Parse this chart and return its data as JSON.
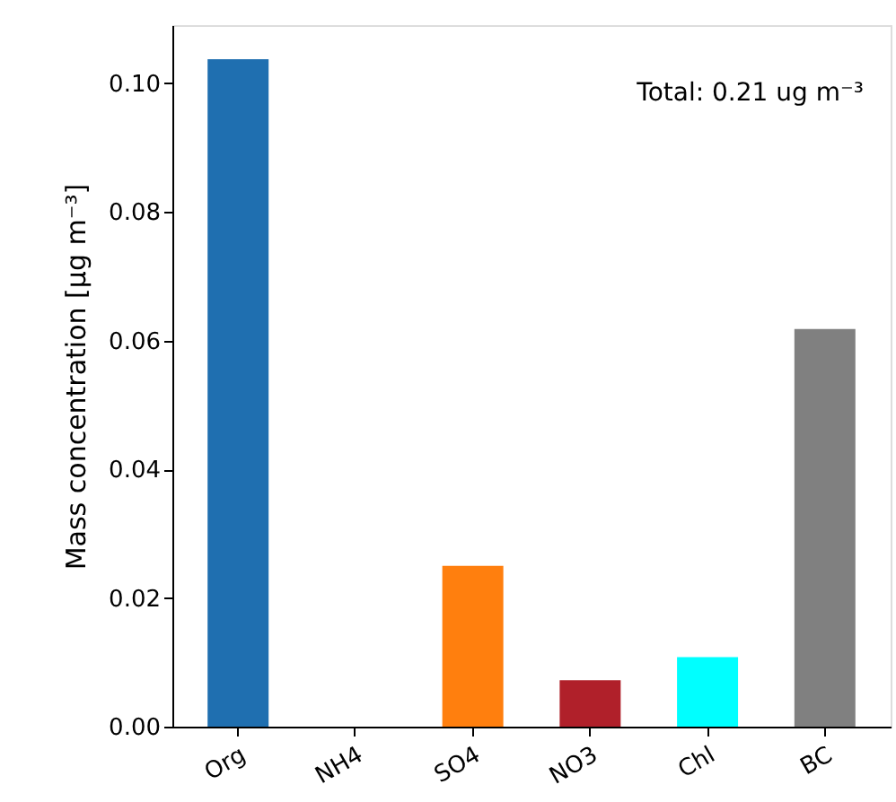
{
  "chart_data": {
    "type": "bar",
    "categories": [
      "Org",
      "NH4",
      "SO4",
      "NO3",
      "Chl",
      "BC"
    ],
    "values": [
      0.1037,
      0,
      0.025,
      0.0072,
      0.0108,
      0.0618
    ],
    "colors": [
      "#1f6fb0",
      "#2ca02c",
      "#ff7f0e",
      "#b0202a",
      "#00ffff",
      "#808080"
    ],
    "ylabel": "Mass concentration [μg m⁻³]",
    "annotations": [
      "Total: 0.21 ug m⁻³"
    ],
    "ylim": [
      0,
      0.109
    ],
    "yticks": [
      {
        "value": 0,
        "label": "0.00"
      },
      {
        "value": 0.02,
        "label": "0.02"
      },
      {
        "value": 0.04,
        "label": "0.04"
      },
      {
        "value": 0.06,
        "label": "0.06"
      },
      {
        "value": 0.08,
        "label": "0.08"
      },
      {
        "value": 0.1,
        "label": "0.10"
      }
    ],
    "grid": false
  }
}
